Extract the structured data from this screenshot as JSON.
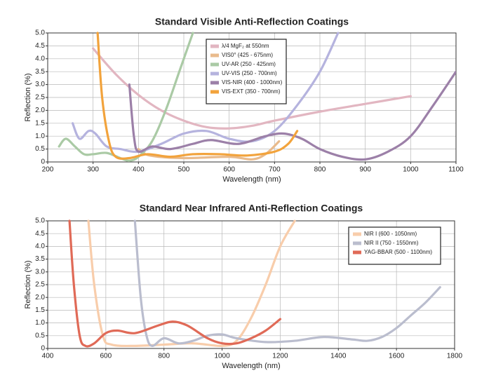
{
  "chart_data": [
    {
      "type": "line",
      "title": "Standard Visible Anti-Reflection Coatings",
      "x_label": "Wavelength (nm)",
      "y_label": "Reflection (%)",
      "xlim": [
        200,
        1100
      ],
      "xticks": [
        200,
        300,
        400,
        500,
        600,
        700,
        800,
        900,
        1000,
        1100
      ],
      "ylim": [
        0,
        5
      ],
      "yticks": [
        0,
        0.5,
        {
          "value": 1,
          "label": "1.0"
        },
        1.5,
        {
          "value": 2,
          "label": "2.0"
        },
        2.5,
        {
          "value": 3,
          "label": "3.0"
        },
        3.5,
        {
          "value": 4,
          "label": "4.0"
        },
        4.5,
        {
          "value": 5,
          "label": "5.0"
        }
      ],
      "grid": true,
      "legend": "upper center",
      "series": [
        {
          "name": "λ/4 MgF₂ at 550nm",
          "color": "#e2b6c1",
          "x": [
            300,
            350,
            400,
            450,
            500,
            550,
            600,
            650,
            700,
            800,
            900,
            1000
          ],
          "values": [
            4.4,
            3.4,
            2.6,
            2.0,
            1.6,
            1.35,
            1.3,
            1.4,
            1.6,
            1.95,
            2.25,
            2.55
          ]
        },
        {
          "name": "VIS0° (425 - 675nm)",
          "color": "#e9bb8d",
          "x": [
            400,
            425,
            500,
            600,
            650,
            680,
            710
          ],
          "values": [
            0.5,
            0.25,
            0.15,
            0.2,
            0.1,
            0.3,
            0.8
          ]
        },
        {
          "name": "UV-AR (250 - 425nm)",
          "color": "#aacaa5",
          "x": [
            225,
            240,
            260,
            280,
            300,
            330,
            360,
            380,
            400,
            430,
            460,
            490,
            520
          ],
          "values": [
            0.6,
            0.9,
            0.6,
            0.3,
            0.3,
            0.35,
            0.15,
            0.05,
            0.2,
            0.8,
            2.0,
            3.5,
            5.0
          ]
        },
        {
          "name": "UV-VIS (250 - 700nm)",
          "color": "#b5b3de",
          "x": [
            255,
            270,
            290,
            305,
            330,
            360,
            400,
            450,
            500,
            550,
            600,
            650,
            700,
            750,
            800,
            840
          ],
          "values": [
            1.5,
            0.9,
            1.2,
            1.1,
            0.6,
            0.5,
            0.4,
            0.7,
            1.1,
            1.2,
            0.9,
            0.8,
            1.2,
            2.2,
            3.5,
            5.0
          ]
        },
        {
          "name": "VIS-NIR (400 - 1000nm)",
          "color": "#9c80a8",
          "x": [
            380,
            390,
            400,
            430,
            470,
            520,
            560,
            620,
            680,
            720,
            760,
            800,
            850,
            900,
            950,
            1000,
            1050,
            1100
          ],
          "values": [
            3.0,
            1.0,
            0.4,
            0.6,
            0.5,
            0.7,
            0.85,
            0.7,
            1.0,
            1.1,
            0.9,
            0.5,
            0.2,
            0.1,
            0.4,
            1.0,
            2.2,
            3.5
          ]
        },
        {
          "name": "VIS-EXT (350 - 700nm)",
          "color": "#f2a33c",
          "x": [
            310,
            320,
            335,
            350,
            380,
            420,
            470,
            520,
            580,
            640,
            700,
            730,
            750
          ],
          "values": [
            5.0,
            2.5,
            0.8,
            0.2,
            0.15,
            0.3,
            0.2,
            0.3,
            0.3,
            0.25,
            0.4,
            0.7,
            1.2
          ]
        }
      ]
    },
    {
      "type": "line",
      "title": "Standard Near Infrared Anti-Reflection Coatings",
      "x_label": "Wavelength (nm)",
      "y_label": "Reflection (%)",
      "xlim": [
        400,
        1800
      ],
      "xticks": [
        400,
        600,
        800,
        1000,
        1200,
        1400,
        1600,
        1800
      ],
      "ylim": [
        0,
        5
      ],
      "yticks": [
        0,
        0.5,
        {
          "value": 1,
          "label": "1.0"
        },
        1.5,
        {
          "value": 2,
          "label": "2.0"
        },
        2.5,
        {
          "value": 3,
          "label": "3.0"
        },
        3.5,
        {
          "value": 4,
          "label": "4.0"
        },
        4.5,
        {
          "value": 5,
          "label": "5.0"
        }
      ],
      "grid": true,
      "legend": "upper right",
      "series": [
        {
          "name": "NIR I (600 - 1050nm)",
          "color": "#f8cdab",
          "x": [
            540,
            560,
            590,
            620,
            700,
            800,
            900,
            1000,
            1050,
            1100,
            1150,
            1200,
            1250
          ],
          "values": [
            5.0,
            2.5,
            0.5,
            0.15,
            0.1,
            0.15,
            0.2,
            0.1,
            0.3,
            1.2,
            2.5,
            4.0,
            5.0
          ]
        },
        {
          "name": "NIR II (750 - 1550nm)",
          "color": "#babdce",
          "x": [
            700,
            720,
            740,
            760,
            800,
            850,
            900,
            950,
            1000,
            1050,
            1150,
            1250,
            1350,
            1450,
            1500,
            1550,
            1600,
            1650,
            1700,
            1750
          ],
          "values": [
            5.0,
            2.0,
            0.5,
            0.1,
            0.4,
            0.2,
            0.3,
            0.5,
            0.55,
            0.4,
            0.25,
            0.3,
            0.45,
            0.35,
            0.3,
            0.45,
            0.8,
            1.3,
            1.8,
            2.4
          ]
        },
        {
          "name": "YAG-BBAR (500 - 1100nm)",
          "color": "#e06a57",
          "x": [
            475,
            490,
            510,
            530,
            560,
            600,
            640,
            700,
            780,
            830,
            880,
            950,
            1000,
            1050,
            1100,
            1150,
            1200
          ],
          "values": [
            5.0,
            2.5,
            0.5,
            0.1,
            0.2,
            0.6,
            0.7,
            0.6,
            0.9,
            1.05,
            0.9,
            0.4,
            0.2,
            0.2,
            0.4,
            0.7,
            1.15
          ]
        }
      ]
    }
  ]
}
